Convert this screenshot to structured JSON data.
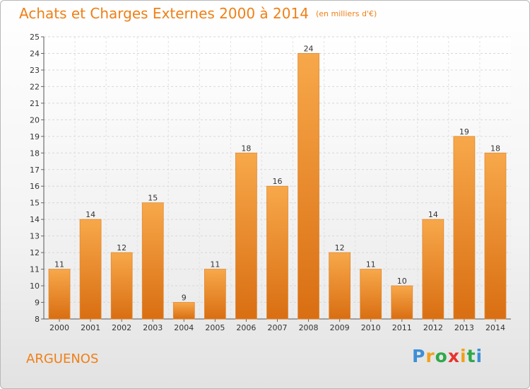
{
  "title": "Achats et Charges Externes 2000 à 2014",
  "unit_note": "(en milliers d'€)",
  "place": "ARGUENOS",
  "logo": {
    "letters": [
      "P",
      "r",
      "o",
      "x",
      "i",
      "t",
      "i"
    ],
    "colors": [
      "#3d8fd6",
      "#f2a11b",
      "#2fa84a",
      "#e8322e",
      "#f2a11b",
      "#2fa84a",
      "#3d8fd6"
    ]
  },
  "colors": {
    "accent": "#f07f16",
    "bar_light": "#f7a84a",
    "bar_dark": "#d96e12"
  },
  "chart_data": {
    "type": "bar",
    "title": "Achats et Charges Externes 2000 à 2014",
    "categories": [
      "2000",
      "2001",
      "2002",
      "2003",
      "2004",
      "2005",
      "2006",
      "2007",
      "2008",
      "2009",
      "2010",
      "2011",
      "2012",
      "2013",
      "2014"
    ],
    "values": [
      11,
      14,
      12,
      15,
      9,
      11,
      18,
      16,
      24,
      12,
      11,
      10,
      14,
      19,
      18
    ],
    "ylim": [
      8,
      25
    ],
    "yticks": [
      8,
      9,
      10,
      11,
      12,
      13,
      14,
      15,
      16,
      17,
      18,
      19,
      20,
      21,
      22,
      23,
      24,
      25
    ],
    "grid": true,
    "xlabel": "",
    "ylabel": ""
  }
}
